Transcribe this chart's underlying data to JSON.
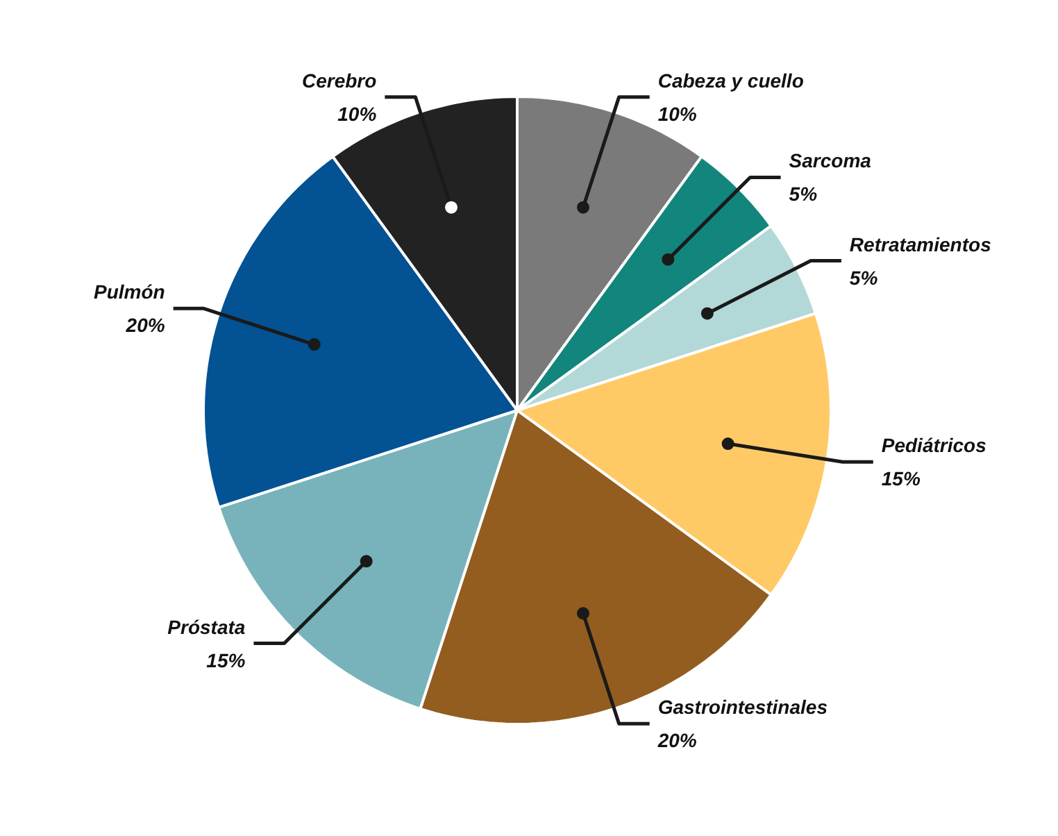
{
  "chart_data": {
    "type": "pie",
    "categories": [
      "Cabeza y cuello",
      "Sarcoma",
      "Retratamientos",
      "Pediátricos",
      "Gastrointestinales",
      "Próstata",
      "Pulmón",
      "Cerebro"
    ],
    "values": [
      10,
      5,
      5,
      15,
      20,
      15,
      20,
      10
    ],
    "value_labels": [
      "10%",
      "5%",
      "5%",
      "15%",
      "20%",
      "15%",
      "20%",
      "10%"
    ],
    "colors": [
      "#7a7a7a",
      "#12857c",
      "#b3d8d8",
      "#ffca66",
      "#935d20",
      "#78b3bb",
      "#025294",
      "#222222"
    ],
    "legend": false
  }
}
